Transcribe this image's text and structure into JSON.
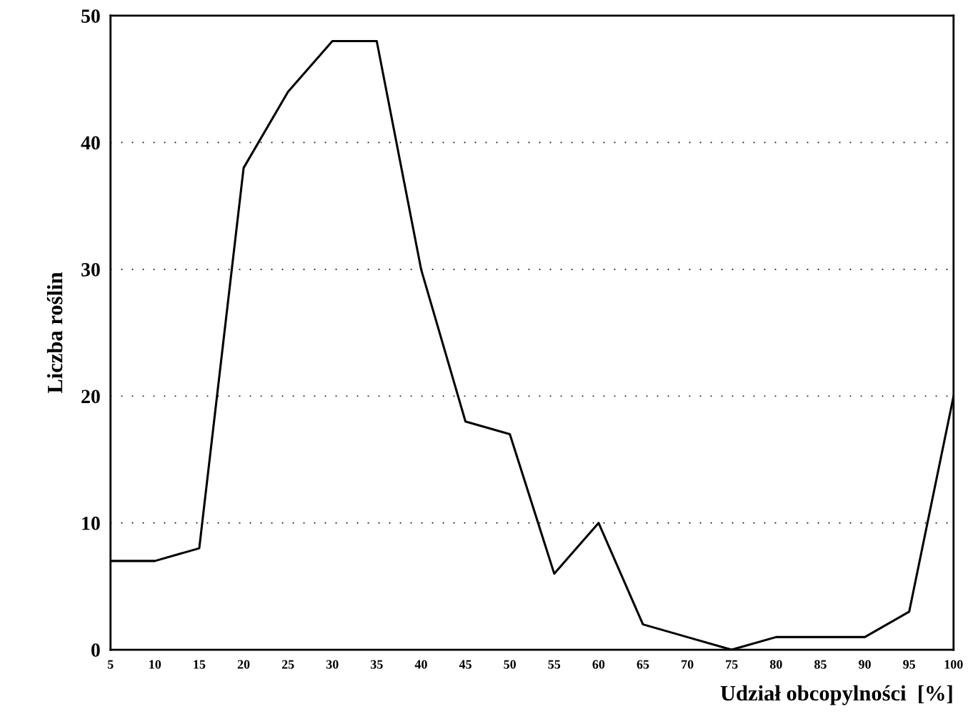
{
  "chart_data": {
    "type": "line",
    "xlabel": "Udział obcopylności  [%]",
    "ylabel": "Liczba roślin",
    "x": [
      5,
      10,
      15,
      20,
      25,
      30,
      35,
      40,
      45,
      50,
      55,
      60,
      65,
      70,
      75,
      80,
      85,
      90,
      95,
      100
    ],
    "series": [
      {
        "color": "#000000",
        "values": [
          7,
          7,
          8,
          38,
          44,
          48,
          48,
          30,
          18,
          17,
          6,
          10,
          2,
          1,
          0,
          1,
          1,
          1,
          3,
          20
        ]
      }
    ],
    "xlim": [
      5,
      100
    ],
    "xticks": [
      5,
      10,
      15,
      20,
      25,
      30,
      35,
      40,
      45,
      50,
      55,
      60,
      65,
      70,
      75,
      80,
      85,
      90,
      95,
      100
    ],
    "ylim": [
      0,
      50
    ],
    "yticks": [
      0,
      10,
      20,
      30,
      40,
      50
    ],
    "grid": "y",
    "marker": "none",
    "line_style": "solid",
    "legend": false
  }
}
